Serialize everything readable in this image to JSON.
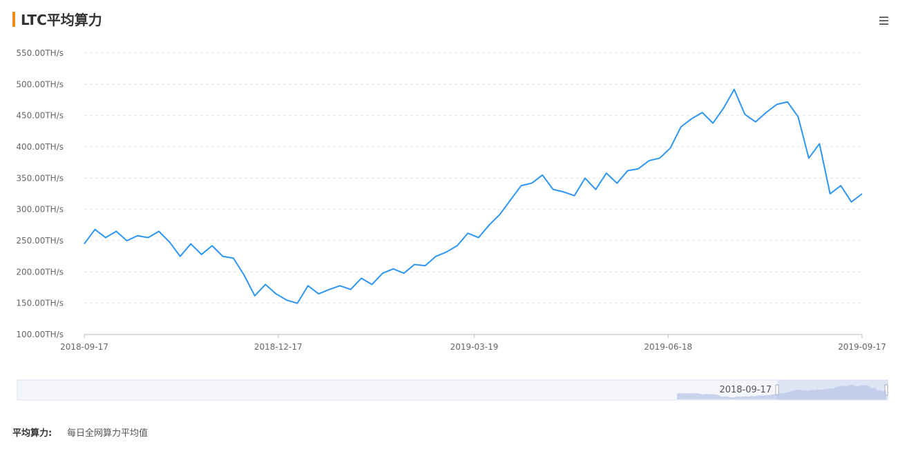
{
  "chart_data": {
    "type": "line",
    "title": "LTC平均算力",
    "x": [
      "2018-09-17",
      "2018-09-22",
      "2018-09-27",
      "2018-10-02",
      "2018-10-07",
      "2018-10-12",
      "2018-10-17",
      "2018-10-22",
      "2018-10-27",
      "2018-11-01",
      "2018-11-06",
      "2018-11-11",
      "2018-11-16",
      "2018-11-21",
      "2018-11-26",
      "2018-12-01",
      "2018-12-06",
      "2018-12-11",
      "2018-12-16",
      "2018-12-21",
      "2018-12-26",
      "2018-12-31",
      "2019-01-05",
      "2019-01-10",
      "2019-01-15",
      "2019-01-20",
      "2019-01-25",
      "2019-01-30",
      "2019-02-04",
      "2019-02-09",
      "2019-02-14",
      "2019-02-19",
      "2019-02-24",
      "2019-03-01",
      "2019-03-06",
      "2019-03-11",
      "2019-03-16",
      "2019-03-21",
      "2019-03-26",
      "2019-03-31",
      "2019-04-05",
      "2019-04-10",
      "2019-04-15",
      "2019-04-20",
      "2019-04-25",
      "2019-04-30",
      "2019-05-05",
      "2019-05-10",
      "2019-05-15",
      "2019-05-20",
      "2019-05-25",
      "2019-05-30",
      "2019-06-04",
      "2019-06-09",
      "2019-06-14",
      "2019-06-19",
      "2019-06-24",
      "2019-06-29",
      "2019-07-04",
      "2019-07-09",
      "2019-07-14",
      "2019-07-19",
      "2019-07-24",
      "2019-07-29",
      "2019-08-03",
      "2019-08-08",
      "2019-08-13",
      "2019-08-18",
      "2019-08-23",
      "2019-08-28",
      "2019-09-02",
      "2019-09-07",
      "2019-09-12",
      "2019-09-17"
    ],
    "series": [
      {
        "name": "平均算力",
        "color": "#2b95f5",
        "values": [
          245,
          268,
          255,
          265,
          250,
          258,
          255,
          265,
          248,
          225,
          245,
          228,
          242,
          225,
          222,
          195,
          162,
          180,
          165,
          155,
          150,
          178,
          165,
          172,
          178,
          172,
          190,
          180,
          198,
          205,
          198,
          212,
          210,
          225,
          232,
          242,
          262,
          255,
          275,
          292,
          315,
          338,
          342,
          355,
          332,
          328,
          322,
          350,
          332,
          358,
          342,
          362,
          365,
          378,
          382,
          398,
          432,
          445,
          455,
          438,
          462,
          492,
          452,
          440,
          455,
          468,
          472,
          448,
          382,
          405,
          325,
          338,
          312,
          325
        ]
      }
    ],
    "xlim": [
      "2018-09-17",
      "2019-09-17"
    ],
    "xticks": [
      "2018-09-17",
      "2018-12-17",
      "2019-03-19",
      "2019-06-18",
      "2019-09-17"
    ],
    "ylim": [
      100,
      550
    ],
    "yticks": [
      {
        "value": 100,
        "label": "100.00TH/s"
      },
      {
        "value": 150,
        "label": "150.00TH/s"
      },
      {
        "value": 200,
        "label": "200.00TH/s"
      },
      {
        "value": 250,
        "label": "250.00TH/s"
      },
      {
        "value": 300,
        "label": "300.00TH/s"
      },
      {
        "value": 350,
        "label": "350.00TH/s"
      },
      {
        "value": 400,
        "label": "400.00TH/s"
      },
      {
        "value": 450,
        "label": "450.00TH/s"
      },
      {
        "value": 500,
        "label": "500.00TH/s"
      },
      {
        "value": 550,
        "label": "550.00TH/s"
      }
    ],
    "grid": true,
    "zoom_label": "2018-09-17",
    "note_label": "平均算力:",
    "note_text": "每日全网算力平均值"
  }
}
